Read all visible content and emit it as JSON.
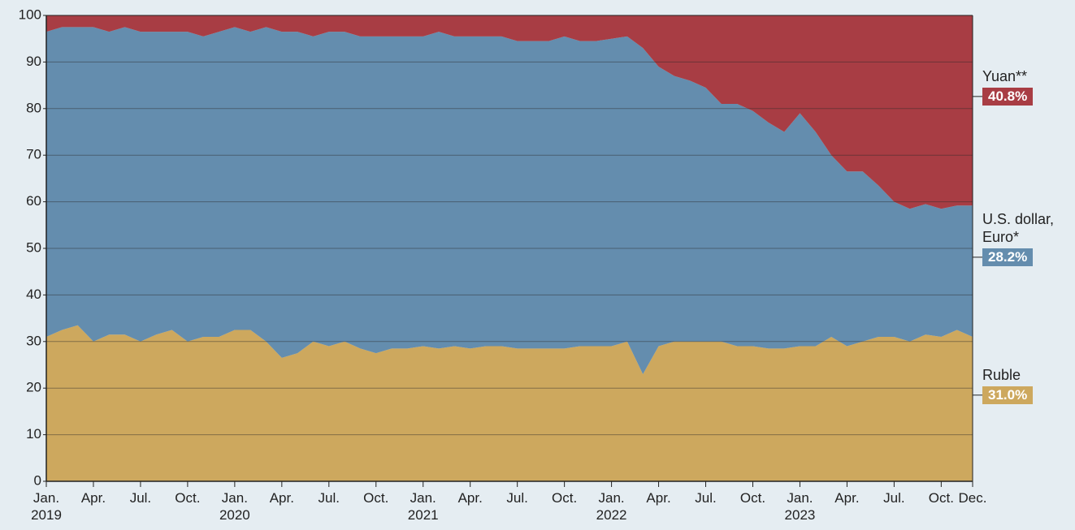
{
  "chart_data": {
    "type": "stacked_area",
    "categories": [
      "Jan. 2019",
      null,
      null,
      "Apr.",
      null,
      null,
      "Jul.",
      null,
      null,
      "Oct.",
      null,
      null,
      "Jan. 2020",
      null,
      null,
      "Apr.",
      null,
      null,
      "Jul.",
      null,
      null,
      "Oct.",
      null,
      null,
      "Jan. 2021",
      null,
      null,
      "Apr.",
      null,
      null,
      "Jul.",
      null,
      null,
      "Oct.",
      null,
      null,
      "Jan. 2022",
      null,
      null,
      "Apr.",
      null,
      null,
      "Jul.",
      null,
      null,
      "Oct.",
      null,
      null,
      "Jan. 2023",
      null,
      null,
      "Apr.",
      null,
      null,
      "Jul.",
      null,
      null,
      "Oct.",
      null,
      "Dec."
    ],
    "series": [
      {
        "name": "Ruble",
        "color": "#cda85e",
        "values": [
          31,
          32.5,
          33.5,
          30,
          31.5,
          31.5,
          30,
          31.5,
          32.5,
          30,
          31,
          31,
          32.5,
          32.5,
          30,
          26.5,
          27.5,
          30,
          29,
          30,
          28.5,
          27.5,
          28.5,
          28.5,
          29,
          28.5,
          29,
          28.5,
          29,
          29,
          28.5,
          28.5,
          28.5,
          28.5,
          29,
          29,
          29,
          30,
          23,
          29,
          30,
          30,
          30,
          30,
          29,
          29,
          28.5,
          28.5,
          29,
          29,
          31,
          29,
          30,
          31,
          31,
          30,
          31.5,
          31,
          32.5,
          31.0
        ],
        "value_labels": {
          "59": "31.0%"
        }
      },
      {
        "name": "U.S. dollar, Euro*",
        "color": "#648dae",
        "values": [
          65.5,
          65,
          64,
          67.5,
          65,
          66,
          66.5,
          65,
          64,
          66.5,
          64.5,
          65.5,
          65,
          64,
          67.5,
          70,
          69,
          65.5,
          67.5,
          66.5,
          67,
          68,
          67,
          67,
          66.5,
          68,
          66.5,
          67,
          66.5,
          66.5,
          66,
          66,
          66,
          67,
          65.5,
          65.5,
          66,
          65.5,
          70,
          60,
          57,
          56,
          54.5,
          51,
          52,
          50.5,
          48.5,
          46.5,
          50,
          46,
          39,
          37.5,
          36.5,
          32.5,
          29,
          28.5,
          28,
          27.5,
          26.7,
          28.2
        ],
        "value_labels": {
          "59": "28.2%"
        }
      },
      {
        "name": "Yuan**",
        "color": "#a83d44",
        "values": [
          3.5,
          2.5,
          2.5,
          2.5,
          3.5,
          2.5,
          3.5,
          3.5,
          3.5,
          3.5,
          4.5,
          3.5,
          2.5,
          3.5,
          2.5,
          3.5,
          3.5,
          4.5,
          3.5,
          3.5,
          4.5,
          4.5,
          4.5,
          4.5,
          4.5,
          3.5,
          4.5,
          4.5,
          4.5,
          4.5,
          5.5,
          5.5,
          5.5,
          4.5,
          5.5,
          5.5,
          5,
          4.5,
          7,
          11,
          13,
          14,
          15.5,
          19,
          19,
          20.5,
          23,
          25,
          21,
          25,
          30,
          33.5,
          33.5,
          36.5,
          40,
          41.5,
          40.5,
          41.5,
          40.8,
          40.8
        ],
        "value_labels": {
          "59": "40.8%"
        }
      }
    ],
    "ylim": [
      0,
      100
    ],
    "yticks": [
      0,
      10,
      20,
      30,
      40,
      50,
      60,
      70,
      80,
      90,
      100
    ],
    "grid": true
  }
}
